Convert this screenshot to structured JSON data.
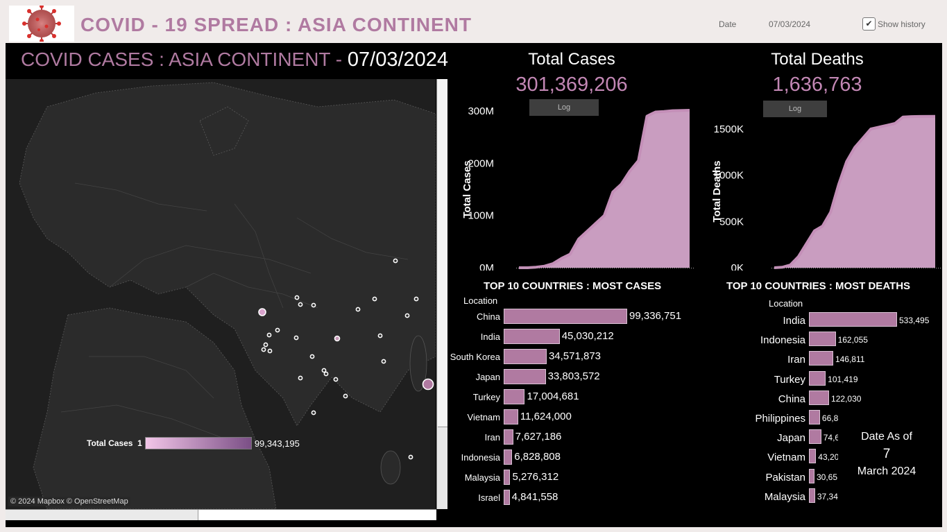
{
  "header": {
    "title": "COVID - 19  SPREAD  :  ASIA  CONTINENT",
    "date_label": "Date",
    "date_value": "07/03/2024",
    "show_history_label": "Show history",
    "show_history_checked": "✔",
    "logo_icon": "covid-virus-icon"
  },
  "map": {
    "title_prefix": "COVID CASES : ASIA CONTINENT - ",
    "title_date": "07/03/2024",
    "credit": "© 2024 Mapbox © OpenStreetMap",
    "legend": {
      "label": "Total Cases",
      "min": "1",
      "max": "99,343,195",
      "color_low": "#f2c6e8",
      "color_high": "#7b4f86"
    }
  },
  "kpis": {
    "cases": {
      "title": "Total Cases",
      "value": "301,369,206",
      "log_label": "Log",
      "y_axis_title": "Total Cases"
    },
    "deaths": {
      "title": "Total Deaths",
      "value": "1,636,763",
      "log_label": "Log",
      "y_axis_title": "Total Deaths"
    }
  },
  "chart_data": [
    {
      "type": "area",
      "ylabel": "Total Cases",
      "ylim": [
        0,
        300000000
      ],
      "yticks": [
        "0M",
        "100M",
        "200M",
        "300M"
      ],
      "y_fraction_of_time": [
        0,
        0.05,
        0.1,
        0.15,
        0.2,
        0.25,
        0.3,
        0.35,
        0.4,
        0.45,
        0.5,
        0.55,
        0.6,
        0.65,
        0.7,
        0.75,
        0.78,
        0.8,
        0.85,
        0.9,
        1.0
      ],
      "values": [
        0,
        0,
        1000000,
        3000000,
        8000000,
        18000000,
        26000000,
        55000000,
        70000000,
        85000000,
        100000000,
        145000000,
        160000000,
        185000000,
        205000000,
        290000000,
        295000000,
        298000000,
        299000000,
        300500000,
        301369206
      ],
      "color": "#d4a5ca"
    },
    {
      "type": "area",
      "ylabel": "Total Deaths",
      "ylim": [
        0,
        1650000
      ],
      "yticks": [
        "0K",
        "500K",
        "1000K",
        "1500K"
      ],
      "y_fraction_of_time": [
        0,
        0.05,
        0.1,
        0.15,
        0.2,
        0.25,
        0.3,
        0.35,
        0.4,
        0.45,
        0.5,
        0.55,
        0.6,
        0.65,
        0.7,
        0.75,
        0.8,
        0.85,
        0.9,
        1.0
      ],
      "values": [
        0,
        5000,
        30000,
        120000,
        260000,
        400000,
        450000,
        600000,
        900000,
        1150000,
        1300000,
        1400000,
        1500000,
        1520000,
        1540000,
        1560000,
        1630000,
        1634000,
        1636000,
        1636763
      ],
      "color": "#d4a5ca"
    },
    {
      "type": "bar",
      "title": "TOP 10 COUNTRIES : MOST CASES",
      "xlabel": "Location",
      "categories": [
        "China",
        "India",
        "South Korea",
        "Japan",
        "Turkey",
        "Vietnam",
        "Iran",
        "Indonesia",
        "Malaysia",
        "Israel"
      ],
      "values": [
        99336751,
        45030212,
        34571873,
        33803572,
        17004681,
        11624000,
        7627186,
        6828808,
        5276312,
        4841558
      ],
      "labels": [
        "99,336,751",
        "45,030,212",
        "34,571,873",
        "33,803,572",
        "17,004,681",
        "11,624,000",
        "7,627,186",
        "6,828,808",
        "5,276,312",
        "4,841,558"
      ]
    },
    {
      "type": "bar",
      "title": "TOP 10 COUNTRIES : MOST DEATHS",
      "xlabel": "Location",
      "categories": [
        "India",
        "Indonesia",
        "Iran",
        "Turkey",
        "China",
        "Philippines",
        "Japan",
        "Vietnam",
        "Pakistan",
        "Malaysia"
      ],
      "values": [
        533495,
        162055,
        146811,
        101419,
        122030,
        66800,
        74600,
        43200,
        30650,
        37340
      ],
      "labels": [
        "533,495",
        "162,055",
        "146,811",
        "101,419",
        "122,030",
        "66,8",
        "74,6",
        "43,20",
        "30,65",
        "37,34"
      ]
    }
  ],
  "date_as_of": {
    "line1": "Date As of",
    "day": "7",
    "line3": "March 2024"
  }
}
